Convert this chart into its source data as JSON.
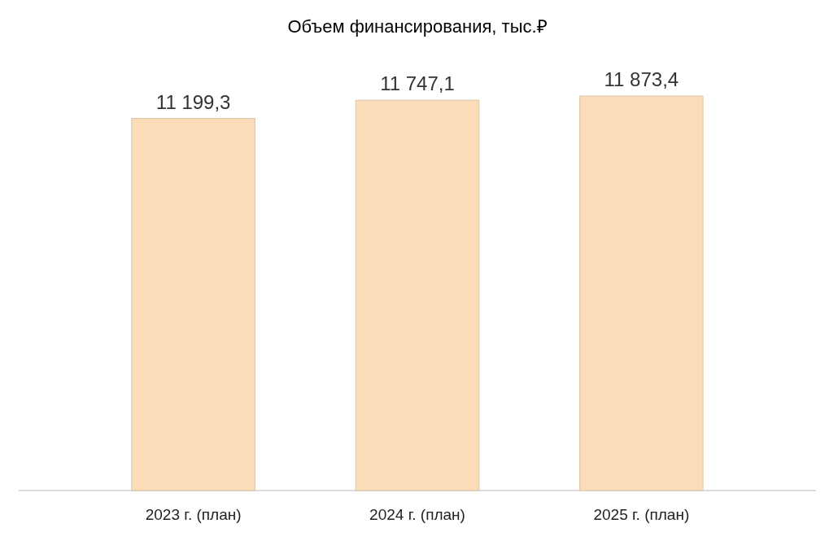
{
  "chart_data": {
    "type": "bar",
    "title": "Объем финансирования, тыс.₽",
    "categories": [
      "2023 г. (план)",
      "2024 г. (план)",
      "2025 г. (план)"
    ],
    "values": [
      11199.3,
      11747.1,
      11873.4
    ],
    "color": "#fcdcb8",
    "data_labels": true,
    "value_labels": [
      "11 199,3",
      "11 747,1",
      "11 873,4"
    ],
    "grid": false
  }
}
